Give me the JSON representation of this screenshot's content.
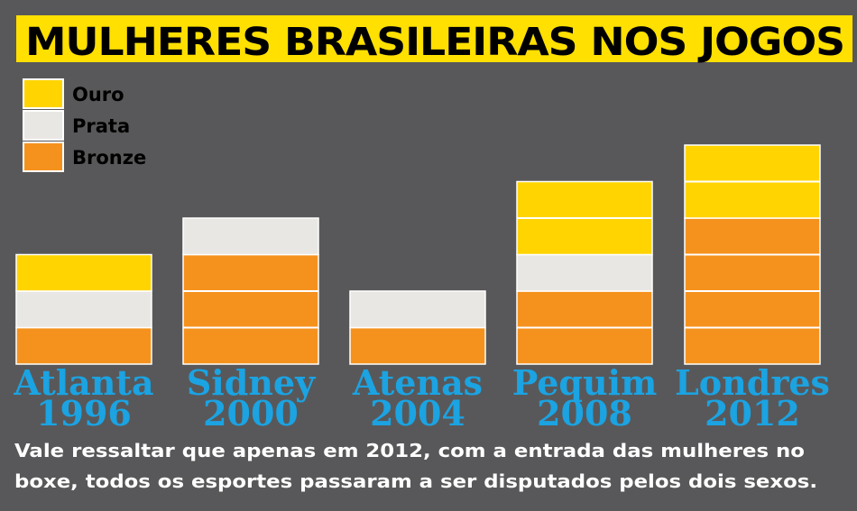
{
  "chart_data": {
    "type": "stacked-blocks",
    "title": "MULHERES BRASILEIRAS NOS JOGOS",
    "categories": [
      "Atlanta 1996",
      "Sidney 2000",
      "Atenas 2004",
      "Pequim 2008",
      "Londres 2012"
    ],
    "series": [
      {
        "name": "Bronze",
        "color": "#f5921e",
        "values": [
          1,
          3,
          1,
          2,
          4
        ]
      },
      {
        "name": "Prata",
        "color": "#e9e7e4",
        "values": [
          1,
          1,
          1,
          1,
          0
        ]
      },
      {
        "name": "Ouro",
        "color": "#ffd400",
        "values": [
          1,
          0,
          0,
          2,
          2
        ]
      }
    ],
    "legend_order": [
      2,
      1,
      0
    ],
    "note": [
      "Vale ressaltar que apenas em 2012, com a entrada das mulheres no",
      "boxe, todos os esportes passaram a ser disputados pelos dois sexos."
    ]
  }
}
